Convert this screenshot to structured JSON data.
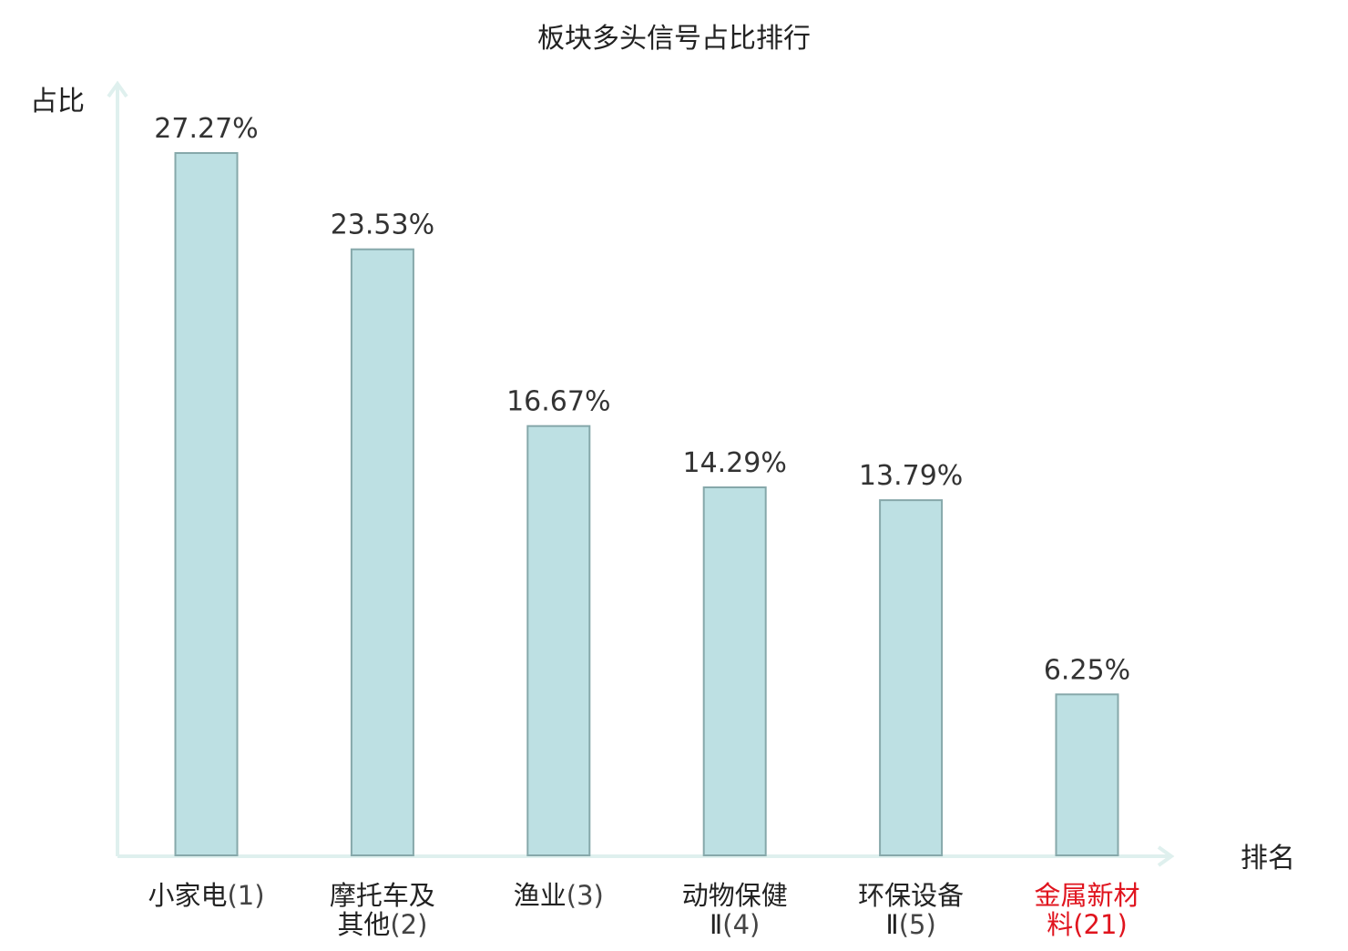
{
  "chart_data": {
    "type": "bar",
    "title": "板块多头信号占比排行",
    "ylabel": "占比",
    "xlabel": "排名",
    "ylim": [
      0,
      30
    ],
    "grid": false,
    "categories": [
      [
        "小家电",
        "(1)"
      ],
      [
        "摩托车及",
        "其他",
        "(2)"
      ],
      [
        "渔业",
        "(3)"
      ],
      [
        "动物保健",
        "Ⅱ",
        "(4)"
      ],
      [
        "环保设备",
        "Ⅱ",
        "(5)"
      ],
      [
        "金属新材",
        "料",
        "(21)"
      ]
    ],
    "category_lines": [
      [
        [
          "小家电",
          "(1)"
        ]
      ],
      [
        [
          "摩托车及"
        ],
        [
          "其他",
          "(2)"
        ]
      ],
      [
        [
          "渔业",
          "(3)"
        ]
      ],
      [
        [
          "动物保健"
        ],
        [
          "Ⅱ",
          "(4)"
        ]
      ],
      [
        [
          "环保设备"
        ],
        [
          "Ⅱ",
          "(5)"
        ]
      ],
      [
        [
          "金属新材"
        ],
        [
          "料",
          "(21)"
        ]
      ]
    ],
    "values": [
      27.27,
      23.53,
      16.67,
      14.29,
      13.79,
      6.25
    ],
    "value_labels": [
      "27.27%",
      "23.53%",
      "16.67%",
      "14.29%",
      "13.79%",
      "6.25%"
    ],
    "highlight_index": 5,
    "colors": {
      "bar_fill": "#bde0e3",
      "bar_stroke": "#86a8aa",
      "axis": "#dff0ee",
      "text": "#222222",
      "value_text": "#333333",
      "rank_text": "#444444",
      "highlight": "#e0141e"
    }
  }
}
